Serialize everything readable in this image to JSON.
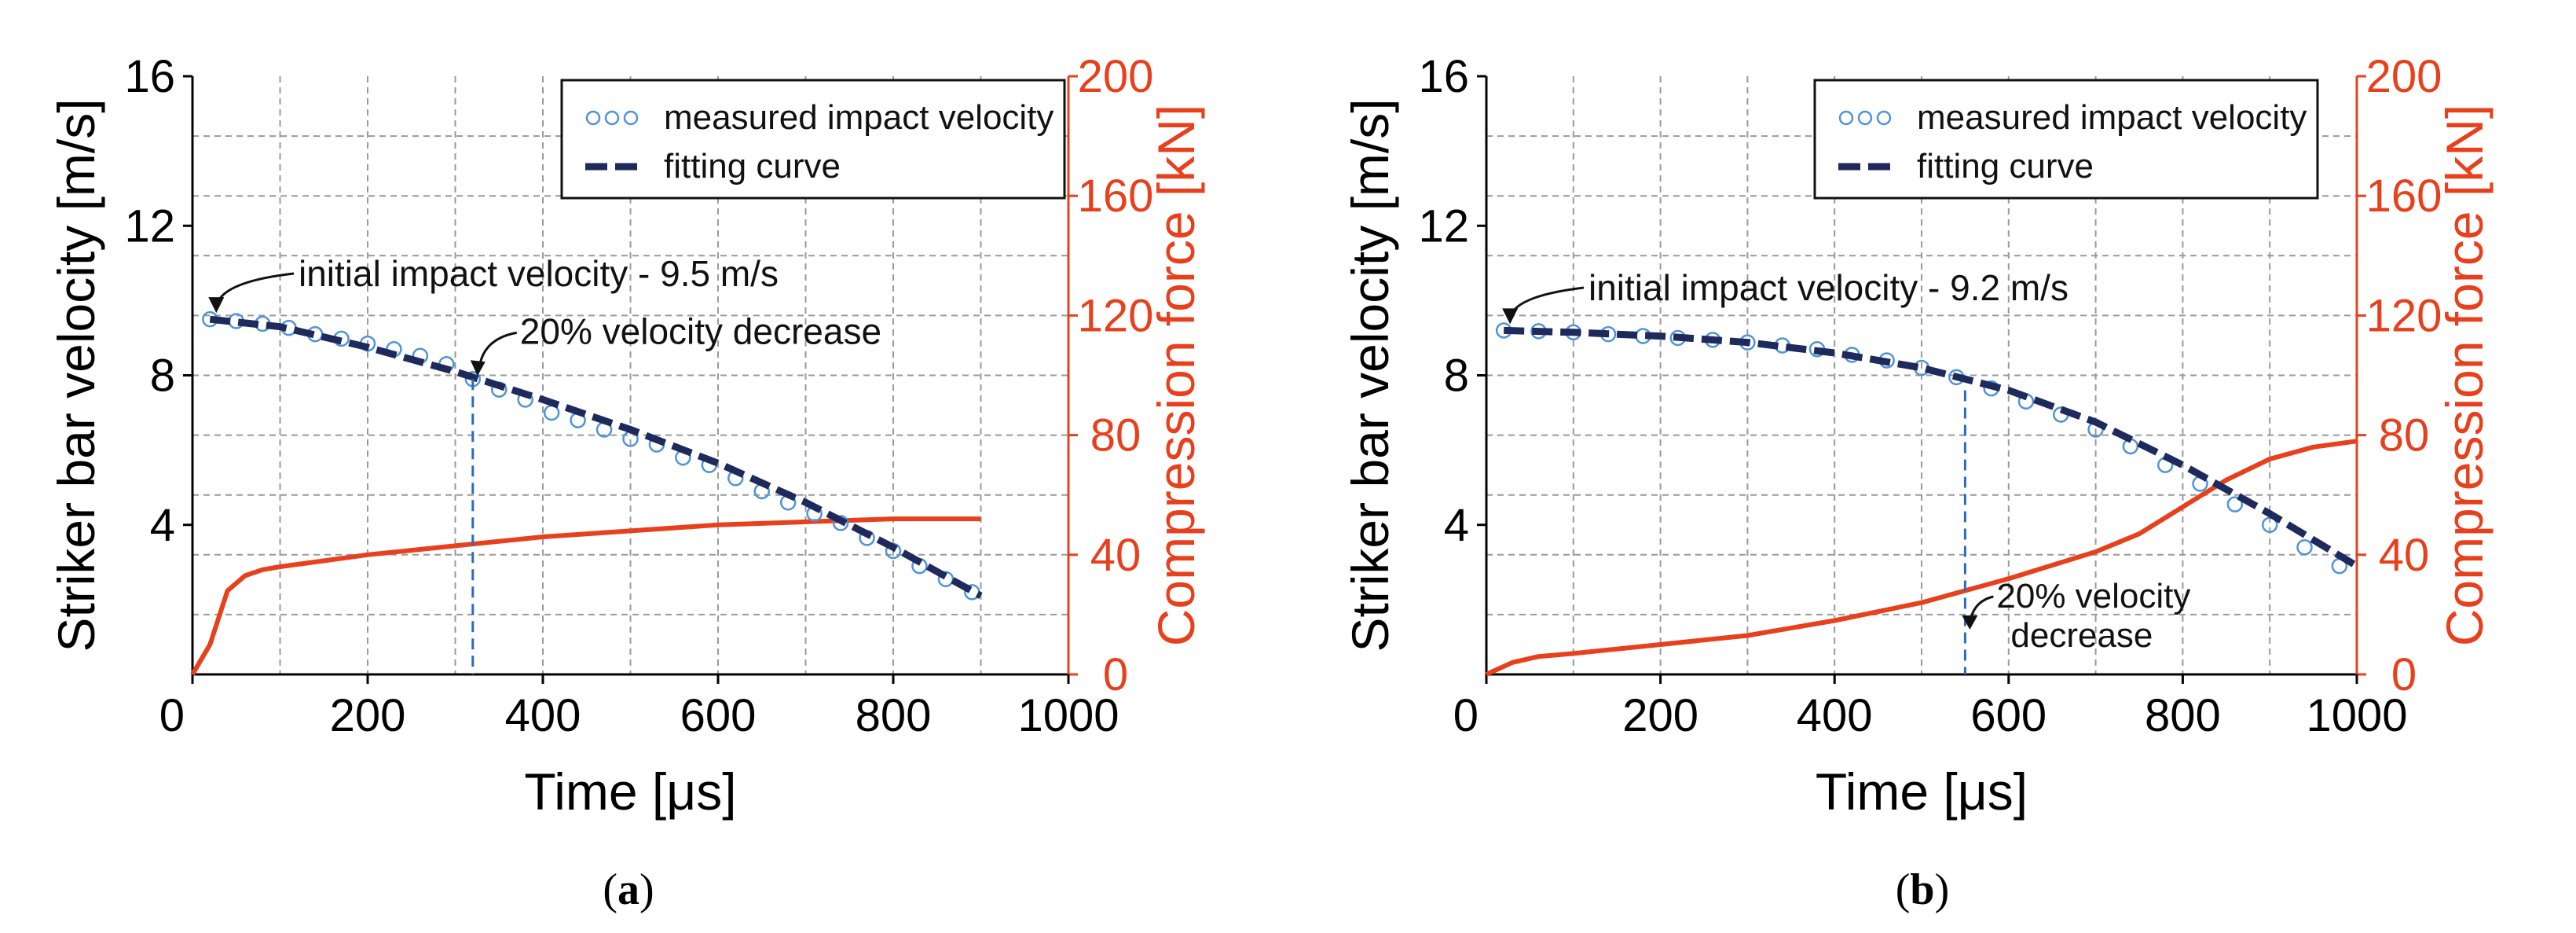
{
  "colors": {
    "velocity_axis": "#000000",
    "force_axis": "#e8401c",
    "measured": "#4f93d8",
    "fit": "#1f2a5c",
    "force_line": "#e8401c",
    "grid": "#999999",
    "marker": "#2b6cb8"
  },
  "chart_data": [
    {
      "type": "line",
      "caption_open": "(",
      "caption_letter": "a",
      "caption_close": ")",
      "xlabel": "Time [μs]",
      "ylabel": "Striker bar velocity [m/s]",
      "y2label": "Compression force [kN]",
      "xlim": [
        0,
        1000
      ],
      "ylim": [
        0,
        16
      ],
      "y2lim": [
        0,
        200
      ],
      "xticks": [
        "0",
        "200",
        "400",
        "600",
        "800",
        "1000"
      ],
      "yticks": [
        "4",
        "8",
        "12",
        "16"
      ],
      "y2ticks": [
        "0",
        "40",
        "80",
        "120",
        "160",
        "200"
      ],
      "legend": {
        "position": "top-right",
        "measured_label": "measured impact velocity",
        "fit_label": "fitting curve"
      },
      "annotations": {
        "initial_text": "initial impact velocity - 9.5 m/s",
        "initial_point": [
          20,
          9.5
        ],
        "decrease_text": "20% velocity decrease",
        "decrease_lines": [
          "20% velocity decrease"
        ],
        "decrease_time": 320,
        "decrease_velocity": 7.9
      },
      "series": [
        {
          "name": "measured impact velocity",
          "axis": "left",
          "x": [
            20,
            50,
            80,
            110,
            140,
            170,
            200,
            230,
            260,
            290,
            320,
            350,
            380,
            410,
            440,
            470,
            500,
            530,
            560,
            590,
            620,
            650,
            680,
            710,
            740,
            770,
            800,
            830,
            860,
            890
          ],
          "y": [
            9.5,
            9.45,
            9.38,
            9.27,
            9.1,
            8.98,
            8.85,
            8.7,
            8.52,
            8.3,
            7.9,
            7.62,
            7.35,
            7.0,
            6.8,
            6.55,
            6.3,
            6.15,
            5.8,
            5.6,
            5.25,
            4.9,
            4.6,
            4.3,
            4.05,
            3.65,
            3.3,
            2.9,
            2.55,
            2.2
          ]
        },
        {
          "name": "fitting curve",
          "axis": "left",
          "x": [
            20,
            100,
            200,
            300,
            400,
            500,
            600,
            700,
            800,
            900
          ],
          "y": [
            9.5,
            9.3,
            8.75,
            8.1,
            7.35,
            6.55,
            5.65,
            4.6,
            3.4,
            2.1
          ]
        },
        {
          "name": "compression force",
          "axis": "right",
          "x": [
            0,
            20,
            40,
            60,
            80,
            100,
            200,
            300,
            400,
            500,
            600,
            700,
            800,
            900
          ],
          "y": [
            0,
            10,
            28,
            33,
            35,
            36,
            40,
            43,
            46,
            48,
            50,
            51,
            52,
            52
          ]
        }
      ]
    },
    {
      "type": "line",
      "caption_open": "(",
      "caption_letter": "b",
      "caption_close": ")",
      "xlabel": "Time [μs]",
      "ylabel": "Striker bar velocity [m/s]",
      "y2label": "Compression force [kN]",
      "xlim": [
        0,
        1000
      ],
      "ylim": [
        0,
        16
      ],
      "y2lim": [
        0,
        200
      ],
      "xticks": [
        "0",
        "200",
        "400",
        "600",
        "800",
        "1000"
      ],
      "yticks": [
        "4",
        "8",
        "12",
        "16"
      ],
      "y2ticks": [
        "0",
        "40",
        "80",
        "120",
        "160",
        "200"
      ],
      "legend": {
        "position": "top-right",
        "measured_label": "measured impact velocity",
        "fit_label": "fitting curve"
      },
      "annotations": {
        "initial_text": "initial impact velocity - 9.2 m/s",
        "initial_point": [
          20,
          9.2
        ],
        "decrease_text": "20% velocity decrease",
        "decrease_lines": [
          "20% velocity",
          "decrease"
        ],
        "decrease_time": 550,
        "decrease_velocity": 7.6
      },
      "series": [
        {
          "name": "measured impact velocity",
          "axis": "left",
          "x": [
            20,
            60,
            100,
            140,
            180,
            220,
            260,
            300,
            340,
            380,
            420,
            460,
            500,
            540,
            580,
            620,
            660,
            700,
            740,
            780,
            820,
            860,
            900,
            940,
            980
          ],
          "y": [
            9.2,
            9.18,
            9.15,
            9.1,
            9.05,
            9.0,
            8.95,
            8.88,
            8.8,
            8.7,
            8.55,
            8.4,
            8.2,
            7.95,
            7.65,
            7.3,
            6.95,
            6.55,
            6.1,
            5.6,
            5.1,
            4.55,
            4.0,
            3.4,
            2.9
          ]
        },
        {
          "name": "fitting curve",
          "axis": "left",
          "x": [
            20,
            100,
            200,
            300,
            400,
            500,
            600,
            700,
            800,
            900,
            1000
          ],
          "y": [
            9.2,
            9.15,
            9.05,
            8.88,
            8.6,
            8.2,
            7.6,
            6.75,
            5.6,
            4.3,
            2.9
          ]
        },
        {
          "name": "compression force",
          "axis": "right",
          "x": [
            0,
            30,
            60,
            100,
            200,
            300,
            400,
            500,
            600,
            700,
            750,
            800,
            850,
            900,
            950,
            1000
          ],
          "y": [
            0,
            4,
            6,
            7,
            10,
            13,
            18,
            24,
            32,
            41,
            47,
            56,
            65,
            72,
            76,
            78
          ]
        }
      ]
    }
  ]
}
